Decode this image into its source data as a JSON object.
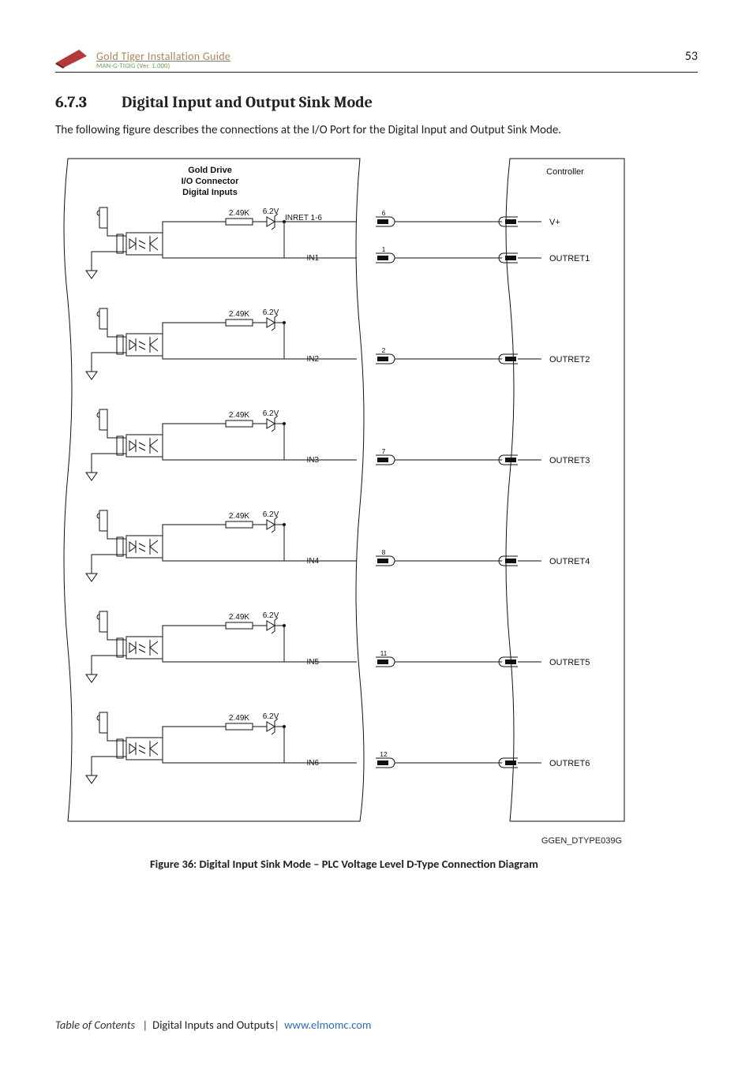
{
  "header": {
    "doc_title": "Gold Tiger Installation Guide",
    "doc_subtitle": "MAN-G-TIGIG (Ver. 1.000)",
    "page_number": "53"
  },
  "section": {
    "number": "6.7.3",
    "title": "Digital Input and Output Sink Mode"
  },
  "body": "The following figure describes the connections at the I/O Port for the Digital Input and Output Sink Mode.",
  "figure": {
    "caption": "Figure 36: Digital Input Sink Mode – PLC Voltage Level D-Type Connection Diagram",
    "drawing_code": "GGEN_DTYPE039G",
    "left_block_title1": "Gold Drive",
    "left_block_title2": "I/O Connector",
    "left_block_title3": "Digital Inputs",
    "right_block_title": "Controller",
    "resistor_label": "2.49K",
    "zener_label": "6.2V",
    "inret_label": "INRET 1-6",
    "channels": [
      {
        "in": "IN1",
        "pin_in": "1",
        "pin_ret": "6",
        "out": "OUTRET1",
        "vplus": true
      },
      {
        "in": "IN2",
        "pin_in": "2",
        "pin_ret": "",
        "out": "OUTRET2",
        "vplus": false
      },
      {
        "in": "IN3",
        "pin_in": "7",
        "pin_ret": "",
        "out": "OUTRET3",
        "vplus": false
      },
      {
        "in": "IN4",
        "pin_in": "8",
        "pin_ret": "",
        "out": "OUTRET4",
        "vplus": false
      },
      {
        "in": "IN5",
        "pin_in": "11",
        "pin_ret": "",
        "out": "OUTRET5",
        "vplus": false
      },
      {
        "in": "IN6",
        "pin_in": "12",
        "pin_ret": "",
        "out": "OUTRET6",
        "vplus": false
      }
    ],
    "vplus_label": "V+",
    "colors": {
      "stroke": "#111111",
      "background": "#ffffff"
    }
  },
  "footer": {
    "toc": "Table of Contents",
    "crumb": "Digital Inputs and Outputs",
    "url_text": "www.elmomc.com"
  }
}
